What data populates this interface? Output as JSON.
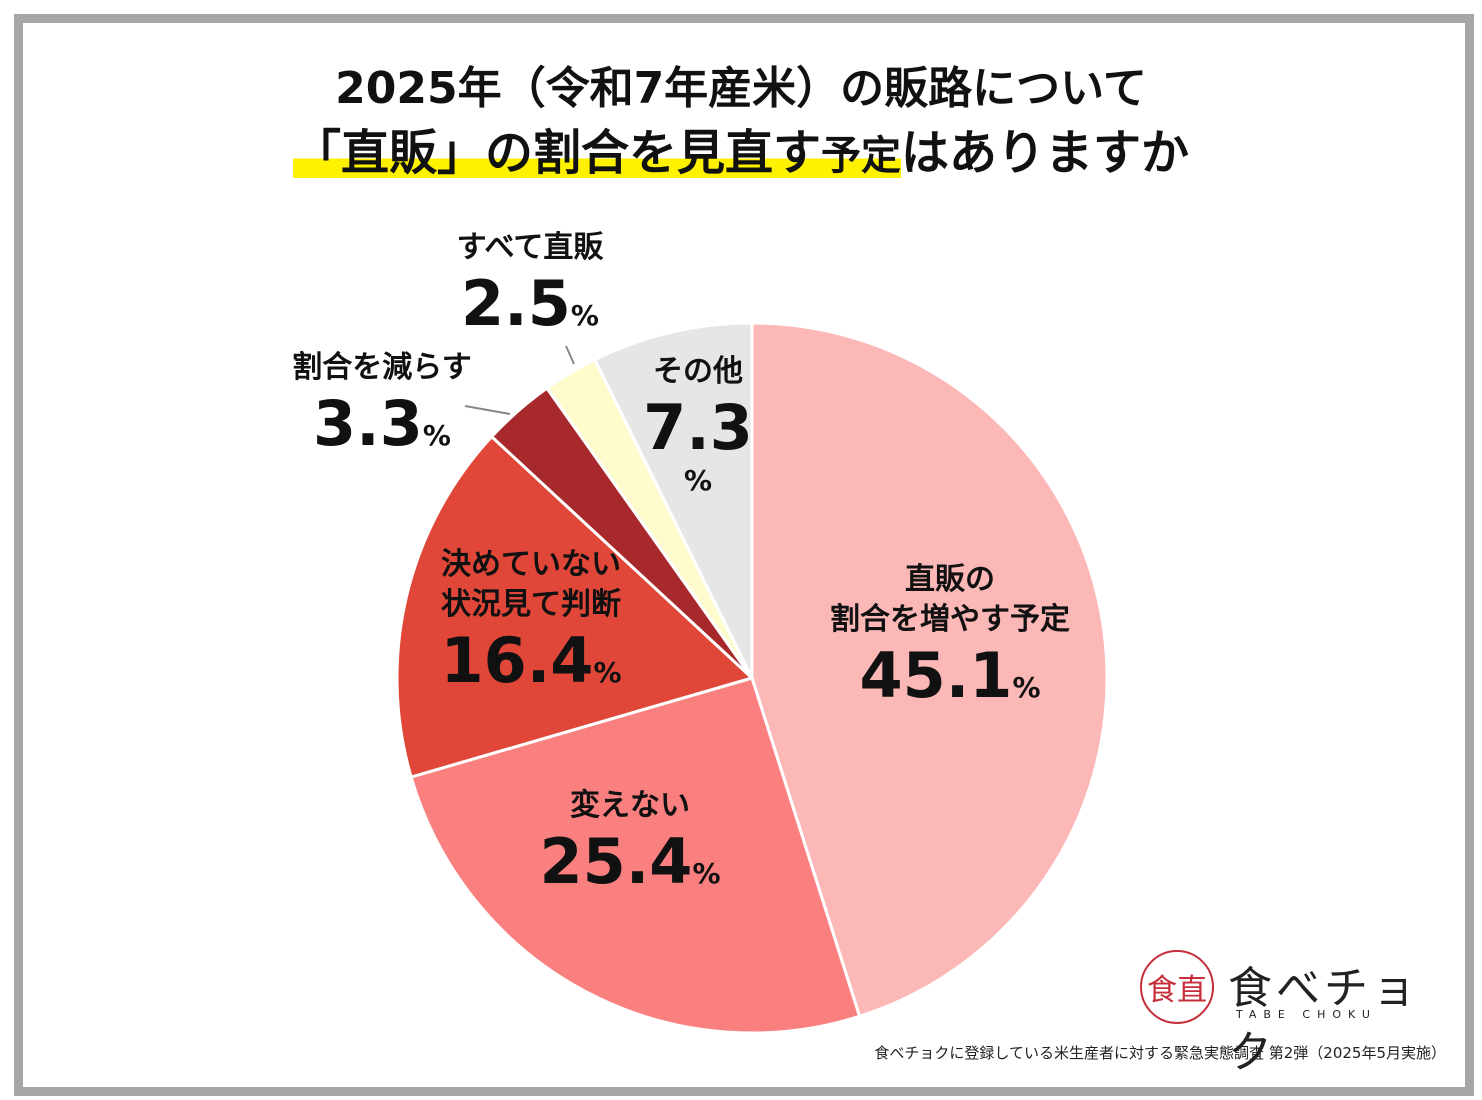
{
  "title": {
    "line1": "2025年（令和7年産米）の販路について",
    "line2_highlight": "「直販」の割合を見直す",
    "line2_small": "予定",
    "line2_rest": "はありますか"
  },
  "chart_data": {
    "type": "pie",
    "start": "top",
    "direction": "clockwise",
    "slices": [
      {
        "label": "直販の割合を増やす予定",
        "label_lines": [
          "直販の",
          "割合を増やす予定"
        ],
        "value": 45.1,
        "color": "#fcb7b7"
      },
      {
        "label": "変えない",
        "label_lines": [
          "変えない"
        ],
        "value": 25.4,
        "color": "#fa8080"
      },
      {
        "label": "決めていない 状況見て判断",
        "label_lines": [
          "決めていない",
          "状況見て判断"
        ],
        "value": 16.4,
        "color": "#e04738"
      },
      {
        "label": "割合を減らす",
        "label_lines": [
          "割合を減らす"
        ],
        "value": 3.3,
        "color": "#a8292b"
      },
      {
        "label": "すべて直販",
        "label_lines": [
          "すべて直販"
        ],
        "value": 2.5,
        "color": "#fefccc"
      },
      {
        "label": "その他",
        "label_lines": [
          "その他"
        ],
        "value": 7.3,
        "color": "#e6e6e6"
      }
    ],
    "value_texts": [
      "45.1",
      "25.4",
      "16.4",
      "3.3",
      "2.5",
      "7.3"
    ],
    "unit": "%"
  },
  "logo": {
    "mark": "食直",
    "brand": "食べチョク",
    "roman": "TABE CHOKU"
  },
  "source": "食べチョクに登録している米生産者に対する緊急実態調査 第2弾（2025年5月実施）"
}
